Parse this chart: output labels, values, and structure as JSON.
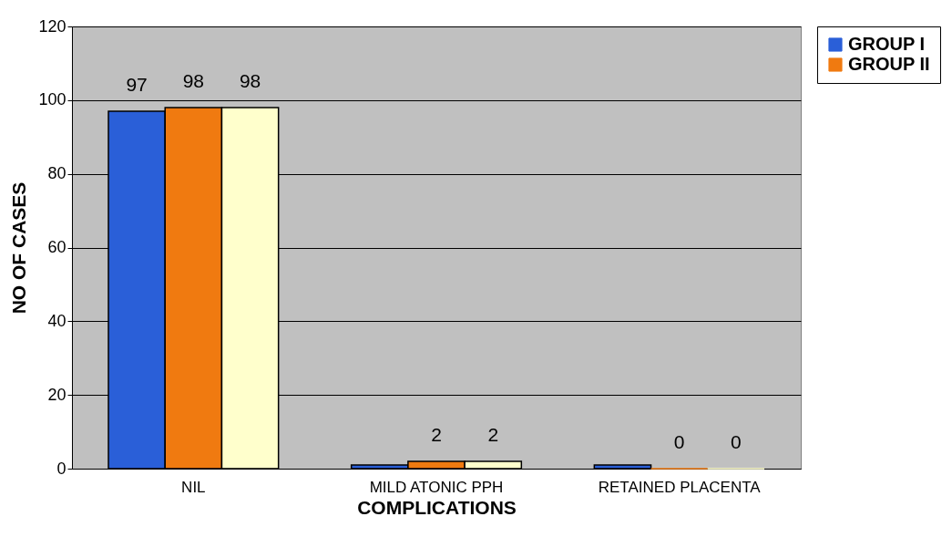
{
  "chart_data": {
    "type": "bar",
    "xlabel": "COMPLICATIONS",
    "ylabel": "NO OF CASES",
    "categories": [
      "NIL",
      "MILD ATONIC PPH",
      "RETAINED PLACENTA"
    ],
    "series": [
      {
        "name": "GROUP I",
        "color": "#2a5fd8",
        "values": [
          97,
          1,
          1
        ],
        "value_labels": [
          "97",
          null,
          null
        ]
      },
      {
        "name": "GROUP II",
        "color": "#f07a10",
        "values": [
          98,
          2,
          0
        ],
        "value_labels": [
          "98",
          "2",
          "0"
        ]
      },
      {
        "color": "#ffffcc",
        "values": [
          98,
          2,
          0
        ],
        "value_labels": [
          "98",
          "2",
          "0"
        ]
      }
    ],
    "ylim": [
      0,
      120
    ],
    "yticks": [
      0,
      20,
      40,
      60,
      80,
      100,
      120
    ],
    "grid": "y",
    "legend": "right"
  }
}
